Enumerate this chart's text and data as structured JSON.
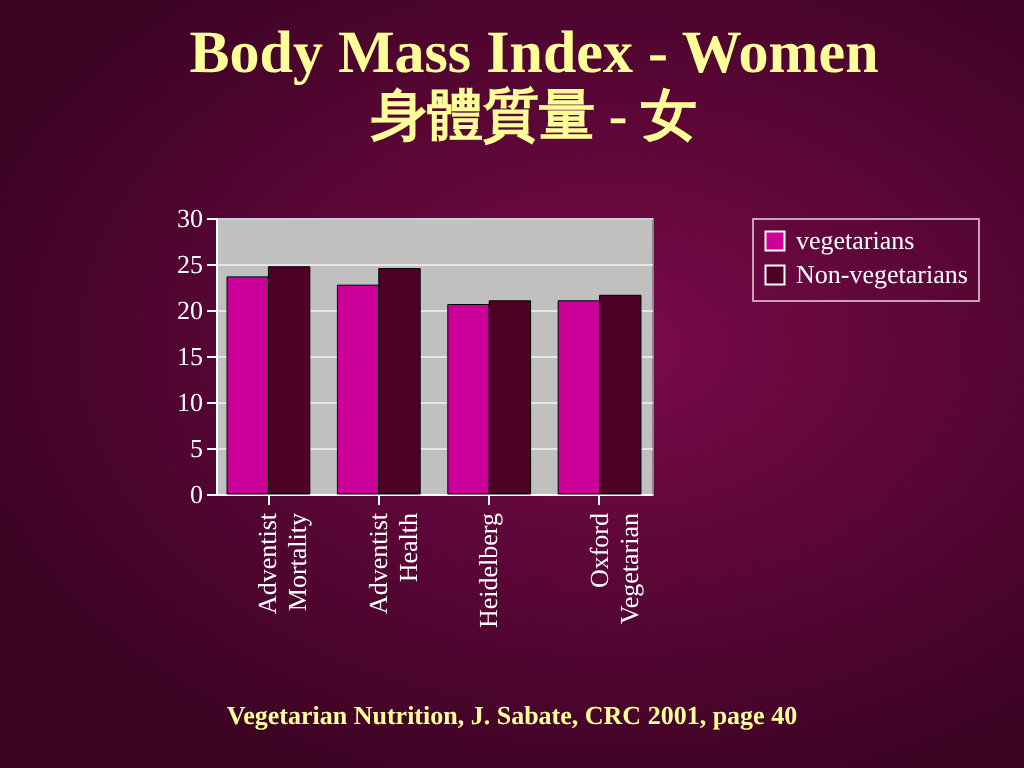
{
  "chart_data": {
    "type": "bar",
    "title": "Body Mass Index - Women",
    "subtitle": "身體質量 - 女",
    "categories": [
      "Adventist Mortality",
      "Adventist Health",
      "Heidelberg",
      "Oxford Vegetarian"
    ],
    "series": [
      {
        "name": "vegetarians",
        "color": "#cc0099",
        "values": [
          23.6,
          22.7,
          20.6,
          21.0
        ]
      },
      {
        "name": "Non-vegetarians",
        "color": "#4f0027",
        "values": [
          24.7,
          24.5,
          21.0,
          21.6
        ]
      }
    ],
    "ylim": [
      0,
      30
    ],
    "yticks": [
      0,
      5,
      10,
      15,
      20,
      25,
      30
    ],
    "grid": "y",
    "legend": "right",
    "annotations": [
      "Vegetarian Nutrition, J. Sabate, CRC 2001, page 40"
    ]
  }
}
